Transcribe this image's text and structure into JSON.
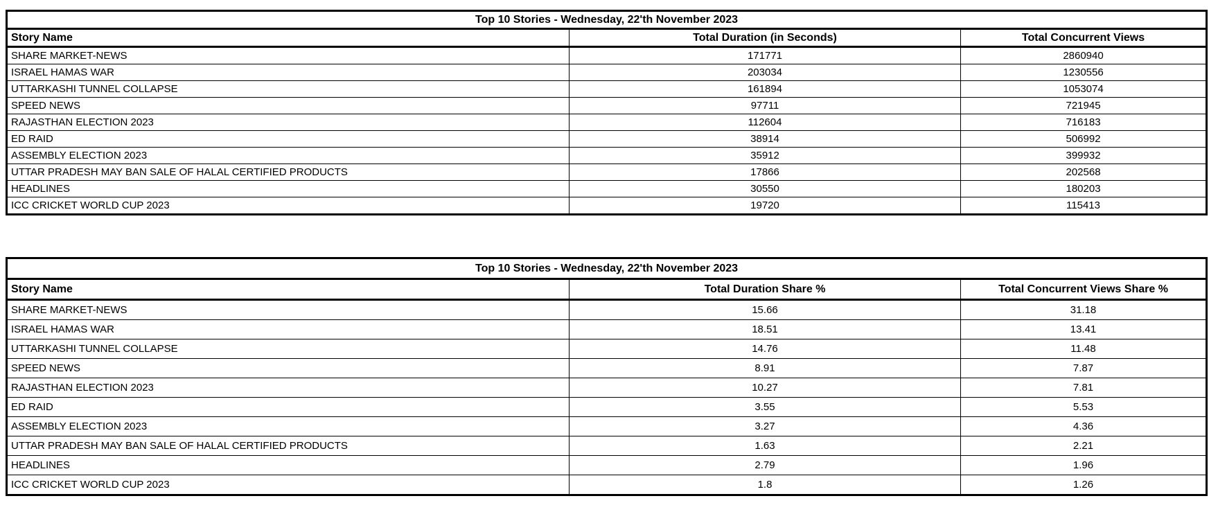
{
  "page": {
    "background_color": "#ffffff",
    "border_color": "#000000",
    "text_color": "#000000"
  },
  "tables": [
    {
      "title": "Top 10 Stories - Wednesday, 22'th November 2023",
      "columns": [
        "Story Name",
        "Total Duration (in Seconds)",
        "Total Concurrent Views"
      ],
      "rows": [
        [
          "SHARE MARKET-NEWS",
          "171771",
          "2860940"
        ],
        [
          "ISRAEL HAMAS WAR",
          "203034",
          "1230556"
        ],
        [
          "UTTARKASHI TUNNEL COLLAPSE",
          "161894",
          "1053074"
        ],
        [
          "SPEED NEWS",
          "97711",
          "721945"
        ],
        [
          "RAJASTHAN ELECTION 2023",
          "112604",
          "716183"
        ],
        [
          "ED RAID",
          "38914",
          "506992"
        ],
        [
          "ASSEMBLY ELECTION 2023",
          "35912",
          "399932"
        ],
        [
          "UTTAR PRADESH MAY BAN SALE OF HALAL CERTIFIED PRODUCTS",
          "17866",
          "202568"
        ],
        [
          "HEADLINES",
          "30550",
          "180203"
        ],
        [
          "ICC CRICKET WORLD CUP 2023",
          "19720",
          "115413"
        ]
      ]
    },
    {
      "title": "Top 10 Stories - Wednesday, 22'th November 2023",
      "columns": [
        "Story Name",
        "Total Duration Share %",
        "Total Concurrent Views Share %"
      ],
      "rows": [
        [
          "SHARE MARKET-NEWS",
          "15.66",
          "31.18"
        ],
        [
          "ISRAEL HAMAS WAR",
          "18.51",
          "13.41"
        ],
        [
          "UTTARKASHI TUNNEL COLLAPSE",
          "14.76",
          "11.48"
        ],
        [
          "SPEED NEWS",
          "8.91",
          "7.87"
        ],
        [
          "RAJASTHAN ELECTION 2023",
          "10.27",
          "7.81"
        ],
        [
          "ED RAID",
          "3.55",
          "5.53"
        ],
        [
          "ASSEMBLY ELECTION 2023",
          "3.27",
          "4.36"
        ],
        [
          "UTTAR PRADESH MAY BAN SALE OF HALAL CERTIFIED PRODUCTS",
          "1.63",
          "2.21"
        ],
        [
          "HEADLINES",
          "2.79",
          "1.96"
        ],
        [
          "ICC CRICKET WORLD CUP 2023",
          "1.8",
          "1.26"
        ]
      ]
    }
  ]
}
